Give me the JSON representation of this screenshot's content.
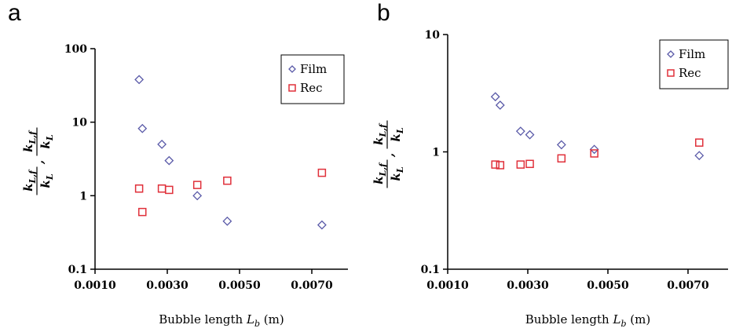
{
  "panels": [
    "a",
    "b"
  ],
  "chart_data": [
    {
      "type": "scatter",
      "panel": "a",
      "xlabel": "Bubble length L_b (m)",
      "xlabel_main": "Bubble length ",
      "xlabel_sym": "L",
      "xlabel_sub": "b",
      "xlabel_unit": " (m)",
      "ylabel_parts": [
        "k",
        "L,f",
        "k",
        "L",
        ", ",
        "k",
        "L,f",
        "k",
        "L"
      ],
      "x_scale": "linear",
      "y_scale": "log",
      "xlim": [
        0.001,
        0.008
      ],
      "ylim": [
        0.1,
        100
      ],
      "x_ticks": [
        0.001,
        0.003,
        0.005,
        0.007
      ],
      "x_tick_labels": [
        "0.0010",
        "0.0030",
        "0.0050",
        "0.0070"
      ],
      "y_ticks": [
        0.1,
        1,
        10,
        100
      ],
      "y_tick_labels": [
        "0.1",
        "1",
        "10",
        "100"
      ],
      "legend_position": "top-right",
      "series": [
        {
          "name": "Film",
          "marker": "diamond",
          "color": "#5a5aa8",
          "x": [
            0.00222,
            0.00231,
            0.00285,
            0.00305,
            0.00383,
            0.00466,
            0.00728
          ],
          "y": [
            38,
            8.2,
            5.0,
            3.0,
            1.0,
            0.45,
            0.4
          ]
        },
        {
          "name": "Rec",
          "marker": "square",
          "color": "#e0303a",
          "x": [
            0.00222,
            0.00231,
            0.00285,
            0.00305,
            0.00383,
            0.00466,
            0.00728
          ],
          "y": [
            1.25,
            0.6,
            1.25,
            1.2,
            1.4,
            1.6,
            2.05
          ]
        }
      ]
    },
    {
      "type": "scatter",
      "panel": "b",
      "xlabel": "Bubble length L_b (m)",
      "xlabel_main": "Bubble length ",
      "xlabel_sym": "L",
      "xlabel_sub": "b",
      "xlabel_unit": " (m)",
      "x_scale": "linear",
      "y_scale": "log",
      "xlim": [
        0.001,
        0.008
      ],
      "ylim": [
        0.1,
        10
      ],
      "x_ticks": [
        0.001,
        0.003,
        0.005,
        0.007
      ],
      "x_tick_labels": [
        "0.0010",
        "0.0030",
        "0.0050",
        "0.0070"
      ],
      "y_ticks": [
        0.1,
        1,
        10
      ],
      "y_tick_labels": [
        "0.1",
        "1",
        "10"
      ],
      "legend_position": "top-right",
      "series": [
        {
          "name": "Film",
          "marker": "diamond",
          "color": "#5a5aa8",
          "x": [
            0.00219,
            0.00231,
            0.00282,
            0.00305,
            0.00384,
            0.00466,
            0.00728
          ],
          "y": [
            2.95,
            2.5,
            1.5,
            1.4,
            1.15,
            1.05,
            0.93
          ]
        },
        {
          "name": "Rec",
          "marker": "square",
          "color": "#e0303a",
          "x": [
            0.00219,
            0.00231,
            0.00282,
            0.00305,
            0.00384,
            0.00466,
            0.00728
          ],
          "y": [
            0.78,
            0.77,
            0.78,
            0.79,
            0.88,
            0.97,
            1.2
          ]
        }
      ]
    }
  ]
}
